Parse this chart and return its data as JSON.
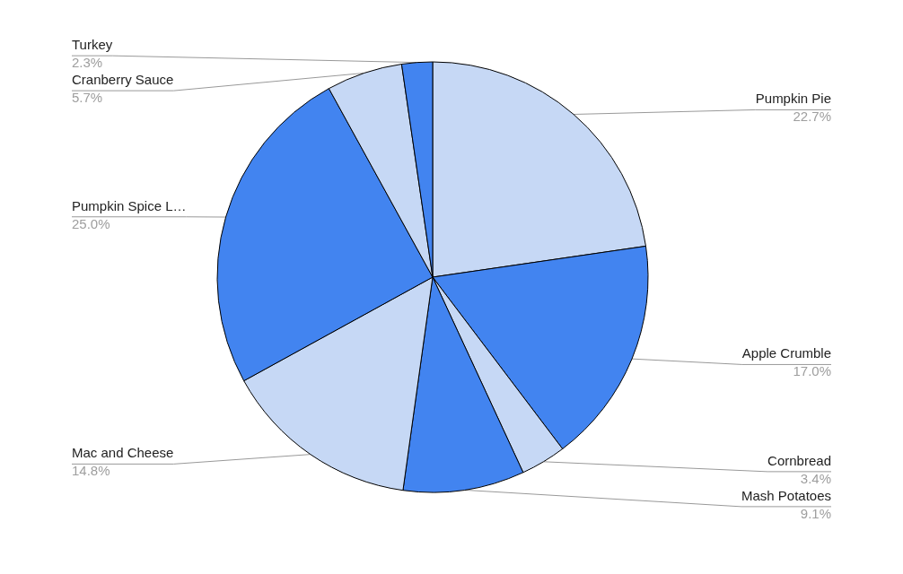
{
  "chart_data": {
    "type": "pie",
    "categories": [
      "Pumpkin Pie",
      "Apple Crumble",
      "Cornbread",
      "Mash Potatoes",
      "Mac and Cheese",
      "Pumpkin Spice L…",
      "Cranberry Sauce",
      "Turkey"
    ],
    "values": [
      22.7,
      17.0,
      3.4,
      9.1,
      14.8,
      25.0,
      5.7,
      2.3
    ],
    "value_labels": [
      "22.7%",
      "17.0%",
      "3.4%",
      "9.1%",
      "14.8%",
      "25.0%",
      "5.7%",
      "2.3%"
    ],
    "colors": [
      "#c6d8f5",
      "#4284f0",
      "#c6d8f5",
      "#4284f0",
      "#c6d8f5",
      "#4284f0",
      "#c6d8f5",
      "#4284f0"
    ],
    "legend": false
  }
}
